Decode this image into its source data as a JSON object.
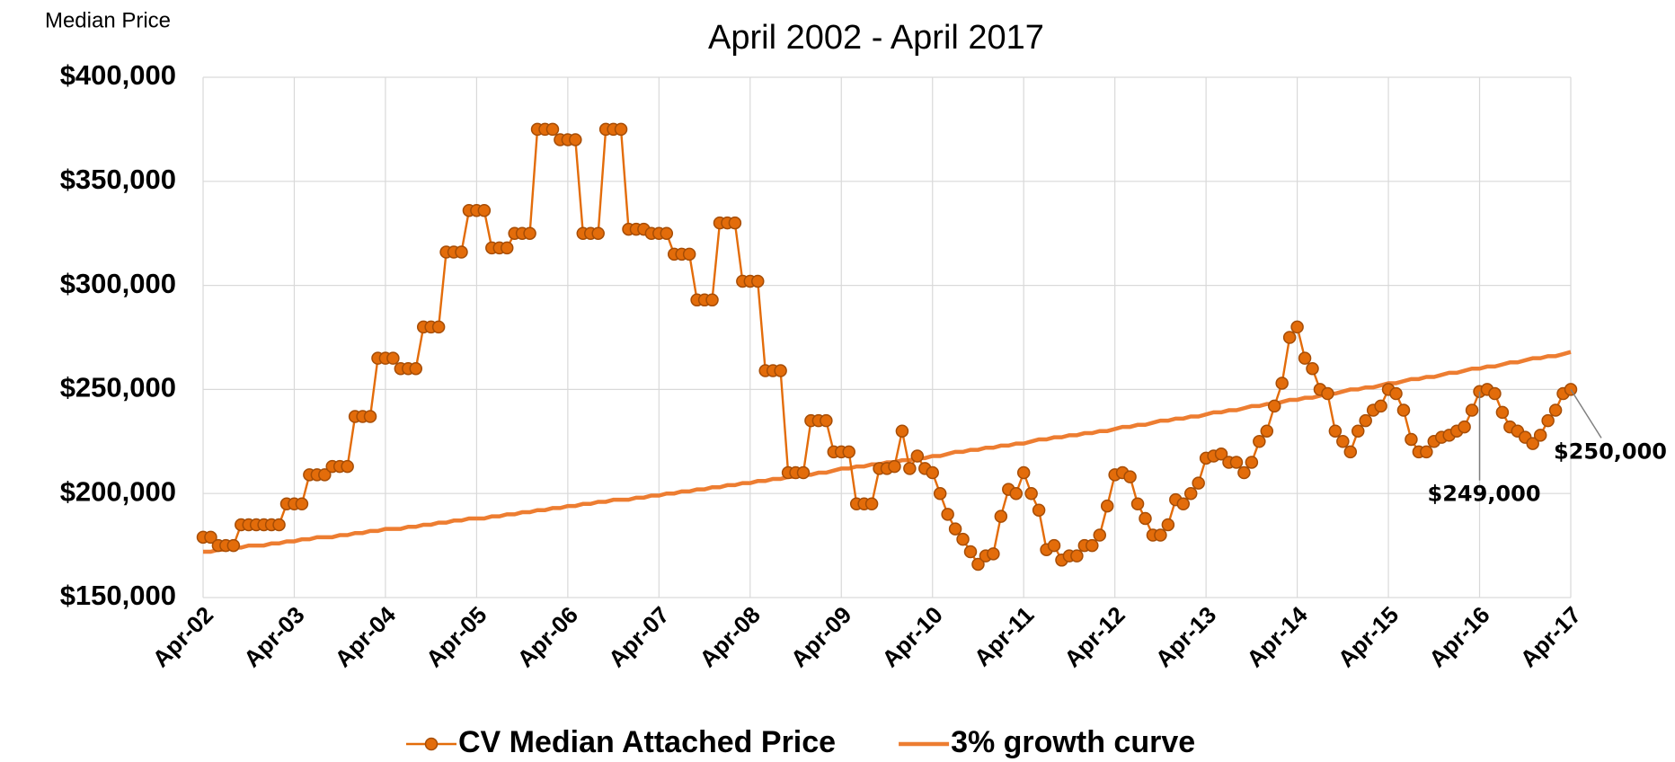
{
  "chart_data": {
    "type": "line",
    "subtitle": "April 2002 - April 2017",
    "y_axis_label": "Median Price",
    "categories": [
      "Apr-02",
      null,
      null,
      null,
      null,
      null,
      null,
      null,
      null,
      null,
      null,
      null,
      "Apr-03",
      null,
      null,
      null,
      null,
      null,
      null,
      null,
      null,
      null,
      null,
      null,
      "Apr-04",
      null,
      null,
      null,
      null,
      null,
      null,
      null,
      null,
      null,
      null,
      null,
      "Apr-05",
      null,
      null,
      null,
      null,
      null,
      null,
      null,
      null,
      null,
      null,
      null,
      "Apr-06",
      null,
      null,
      null,
      null,
      null,
      null,
      null,
      null,
      null,
      null,
      null,
      "Apr-07",
      null,
      null,
      null,
      null,
      null,
      null,
      null,
      null,
      null,
      null,
      null,
      "Apr-08",
      null,
      null,
      null,
      null,
      null,
      null,
      null,
      null,
      null,
      null,
      null,
      "Apr-09",
      null,
      null,
      null,
      null,
      null,
      null,
      null,
      null,
      null,
      null,
      null,
      "Apr-10",
      null,
      null,
      null,
      null,
      null,
      null,
      null,
      null,
      null,
      null,
      null,
      "Apr-11",
      null,
      null,
      null,
      null,
      null,
      null,
      null,
      null,
      null,
      null,
      null,
      "Apr-12",
      null,
      null,
      null,
      null,
      null,
      null,
      null,
      null,
      null,
      null,
      null,
      "Apr-13",
      null,
      null,
      null,
      null,
      null,
      null,
      null,
      null,
      null,
      null,
      null,
      "Apr-14",
      null,
      null,
      null,
      null,
      null,
      null,
      null,
      null,
      null,
      null,
      null,
      "Apr-15",
      null,
      null,
      null,
      null,
      null,
      null,
      null,
      null,
      null,
      null,
      null,
      "Apr-16",
      null,
      null,
      null,
      null,
      null,
      null,
      null,
      null,
      null,
      null,
      null,
      "Apr-17"
    ],
    "series": [
      {
        "name": "CV Median Attached Price",
        "color": "#e36c0a",
        "marker": true,
        "values": [
          179000,
          179000,
          175000,
          175000,
          175000,
          185000,
          185000,
          185000,
          185000,
          185000,
          185000,
          195000,
          195000,
          195000,
          209000,
          209000,
          209000,
          213000,
          213000,
          213000,
          237000,
          237000,
          237000,
          265000,
          265000,
          265000,
          260000,
          260000,
          260000,
          280000,
          280000,
          280000,
          316000,
          316000,
          316000,
          336000,
          336000,
          336000,
          318000,
          318000,
          318000,
          325000,
          325000,
          325000,
          375000,
          375000,
          375000,
          370000,
          370000,
          370000,
          325000,
          325000,
          325000,
          375000,
          375000,
          375000,
          327000,
          327000,
          327000,
          325000,
          325000,
          325000,
          315000,
          315000,
          315000,
          293000,
          293000,
          293000,
          330000,
          330000,
          330000,
          302000,
          302000,
          302000,
          259000,
          259000,
          259000,
          210000,
          210000,
          210000,
          235000,
          235000,
          235000,
          220000,
          220000,
          220000,
          195000,
          195000,
          195000,
          212000,
          212000,
          213000,
          230000,
          212000,
          218000,
          212000,
          210000,
          200000,
          190000,
          183000,
          178000,
          172000,
          166000,
          170000,
          171000,
          189000,
          202000,
          200000,
          210000,
          200000,
          192000,
          173000,
          175000,
          168000,
          170000,
          170000,
          175000,
          175000,
          180000,
          194000,
          209000,
          210000,
          208000,
          195000,
          188000,
          180000,
          180000,
          185000,
          197000,
          195000,
          200000,
          205000,
          217000,
          218000,
          219000,
          215000,
          215000,
          210000,
          215000,
          225000,
          230000,
          242000,
          253000,
          275000,
          280000,
          265000,
          260000,
          250000,
          248000,
          230000,
          225000,
          220000,
          230000,
          235000,
          240000,
          242000,
          250000,
          248000,
          240000,
          226000,
          220000,
          220000,
          225000,
          227000,
          228000,
          230000,
          232000,
          240000,
          249000,
          250000,
          248000,
          239000,
          232000,
          230000,
          227000,
          224000,
          228000,
          235000,
          240000,
          248000,
          250000
        ],
        "value_labels": [
          null,
          null,
          null,
          null,
          null,
          null,
          null,
          null,
          null,
          null,
          null,
          null,
          null,
          null,
          null,
          null,
          null,
          null,
          null,
          null,
          null,
          null,
          null,
          null,
          null,
          null,
          null,
          null,
          null,
          null,
          null,
          null,
          null,
          null,
          null,
          null,
          null,
          null,
          null,
          null,
          null,
          null,
          null,
          null,
          null,
          null,
          null,
          null,
          null,
          null,
          null,
          null,
          null,
          null,
          null,
          null,
          null,
          null,
          null,
          null,
          null,
          null,
          null,
          null,
          null,
          null,
          null,
          null,
          null,
          null,
          null,
          null,
          null,
          null,
          null,
          null,
          null,
          null,
          null,
          null,
          null,
          null,
          null,
          null,
          null,
          null,
          null,
          null,
          null,
          null,
          null,
          null,
          null,
          null,
          null,
          null,
          null,
          null,
          null,
          null,
          null,
          null,
          null,
          null,
          null,
          null,
          null,
          null,
          null,
          null,
          null,
          null,
          null,
          null,
          null,
          null,
          null,
          null,
          null,
          null,
          null,
          null,
          null,
          null,
          null,
          null,
          null,
          null,
          null,
          null,
          null,
          null,
          null,
          null,
          null,
          null,
          null,
          null,
          null,
          null,
          null,
          null,
          null,
          null,
          null,
          null,
          null,
          null,
          null,
          null,
          null,
          null,
          null,
          null,
          null,
          null,
          null,
          null,
          null,
          null,
          null,
          null,
          null,
          null,
          null,
          null,
          null,
          null,
          "$249,000",
          null,
          null,
          null,
          null,
          null,
          null,
          null,
          null,
          null,
          null,
          null,
          "$250,000"
        ]
      },
      {
        "name": "3% growth curve",
        "color": "#ed7d31",
        "marker": false,
        "values": [
          172000,
          172000,
          173000,
          173000,
          174000,
          174000,
          175000,
          175000,
          175000,
          176000,
          176000,
          177000,
          177000,
          178000,
          178000,
          179000,
          179000,
          179000,
          180000,
          180000,
          181000,
          181000,
          182000,
          182000,
          183000,
          183000,
          183000,
          184000,
          184000,
          185000,
          185000,
          186000,
          186000,
          187000,
          187000,
          188000,
          188000,
          188000,
          189000,
          189000,
          190000,
          190000,
          191000,
          191000,
          192000,
          192000,
          193000,
          193000,
          194000,
          194000,
          195000,
          195000,
          196000,
          196000,
          197000,
          197000,
          197000,
          198000,
          198000,
          199000,
          199000,
          200000,
          200000,
          201000,
          201000,
          202000,
          202000,
          203000,
          203000,
          204000,
          204000,
          205000,
          205000,
          206000,
          206000,
          207000,
          207000,
          208000,
          208000,
          209000,
          209000,
          210000,
          210000,
          211000,
          212000,
          212000,
          213000,
          213000,
          214000,
          214000,
          215000,
          215000,
          216000,
          216000,
          217000,
          217000,
          218000,
          218000,
          219000,
          220000,
          220000,
          221000,
          221000,
          222000,
          222000,
          223000,
          223000,
          224000,
          224000,
          225000,
          226000,
          226000,
          227000,
          227000,
          228000,
          228000,
          229000,
          229000,
          230000,
          230000,
          231000,
          232000,
          232000,
          233000,
          233000,
          234000,
          235000,
          235000,
          236000,
          236000,
          237000,
          237000,
          238000,
          239000,
          239000,
          240000,
          240000,
          241000,
          242000,
          242000,
          243000,
          243000,
          244000,
          245000,
          245000,
          246000,
          246000,
          247000,
          248000,
          248000,
          249000,
          250000,
          250000,
          251000,
          251000,
          252000,
          253000,
          253000,
          254000,
          255000,
          255000,
          256000,
          256000,
          257000,
          258000,
          258000,
          259000,
          260000,
          260000,
          261000,
          261000,
          262000,
          263000,
          263000,
          264000,
          265000,
          265000,
          266000,
          266000,
          267000,
          268000
        ]
      }
    ],
    "ylim": [
      150000,
      400000
    ],
    "yticks": [
      {
        "value": 150000,
        "label": "$150,000"
      },
      {
        "value": 200000,
        "label": "$200,000"
      },
      {
        "value": 250000,
        "label": "$250,000"
      },
      {
        "value": 300000,
        "label": "$300,000"
      },
      {
        "value": 350000,
        "label": "$350,000"
      },
      {
        "value": 400000,
        "label": "$400,000"
      }
    ],
    "grid": true,
    "legend": "bottom"
  }
}
